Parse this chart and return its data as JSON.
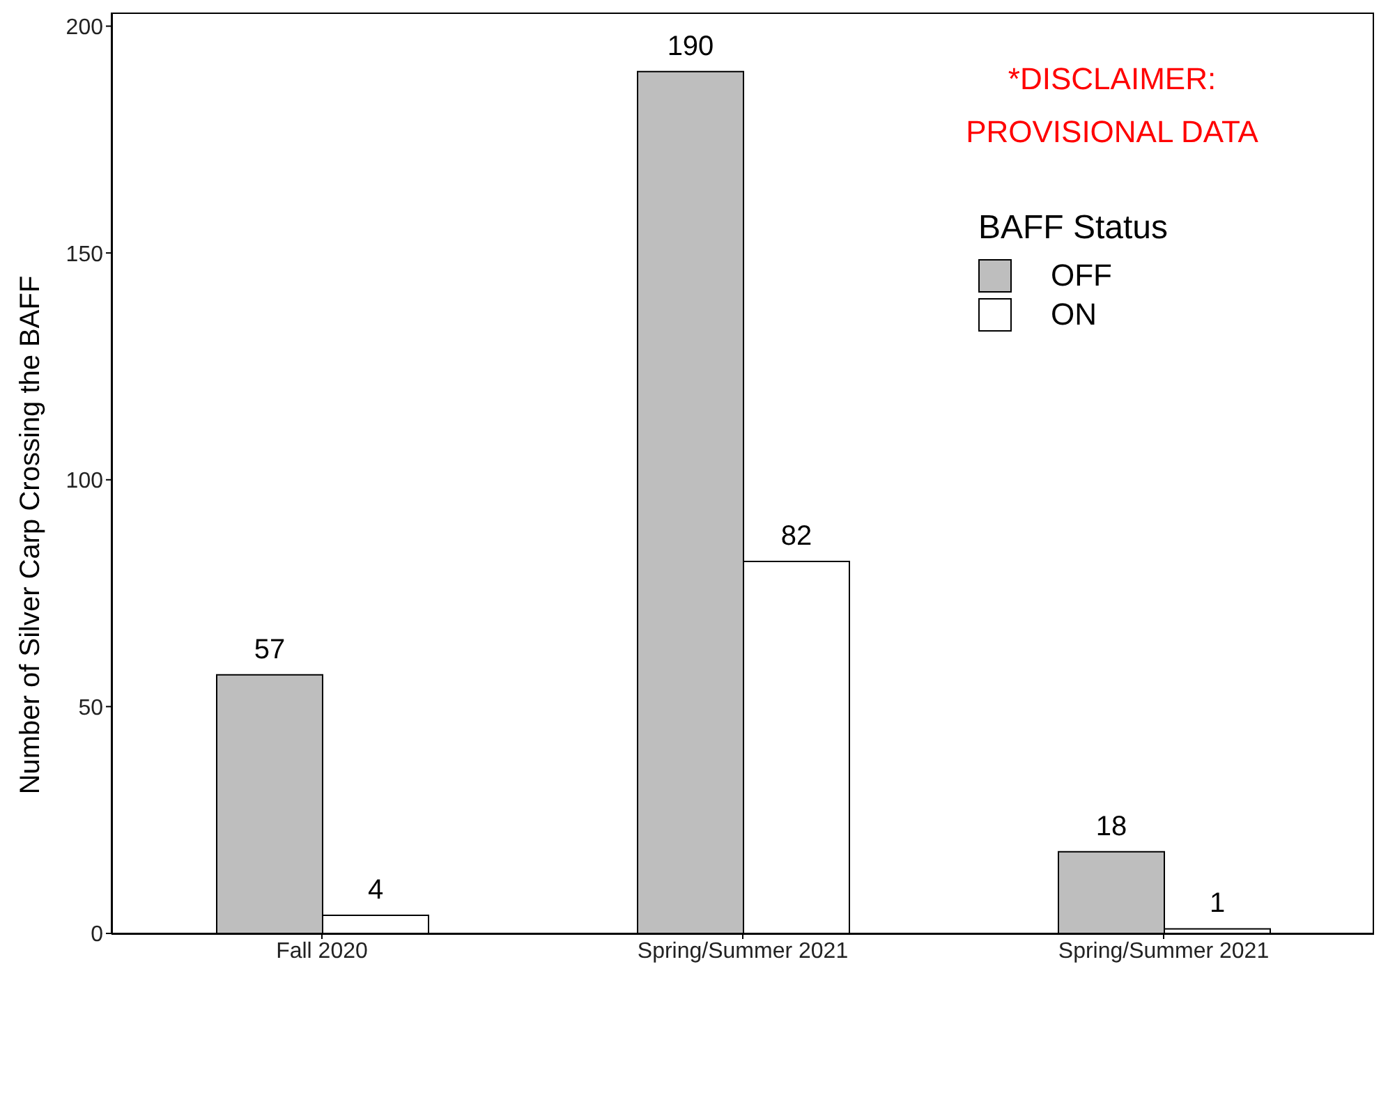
{
  "chart_data": {
    "type": "bar",
    "categories": [
      "Fall 2020",
      "Spring/Summer 2021",
      "Spring/Summer 2021"
    ],
    "series": [
      {
        "name": "OFF",
        "color": "#bebebe",
        "values": [
          57,
          190,
          18
        ]
      },
      {
        "name": "ON",
        "color": "#ffffff",
        "values": [
          4,
          82,
          1
        ]
      }
    ],
    "ylabel": "Number of Silver Carp Crossing the BAFF",
    "legend_title": "BAFF Status",
    "legend": "top right",
    "data_labels": true,
    "grid": false,
    "ylim": [
      0,
      203
    ],
    "yticks": [
      0,
      50,
      100,
      150,
      200
    ],
    "annotations": [
      "*DISCLAIMER:",
      "PROVISIONAL DATA"
    ]
  }
}
